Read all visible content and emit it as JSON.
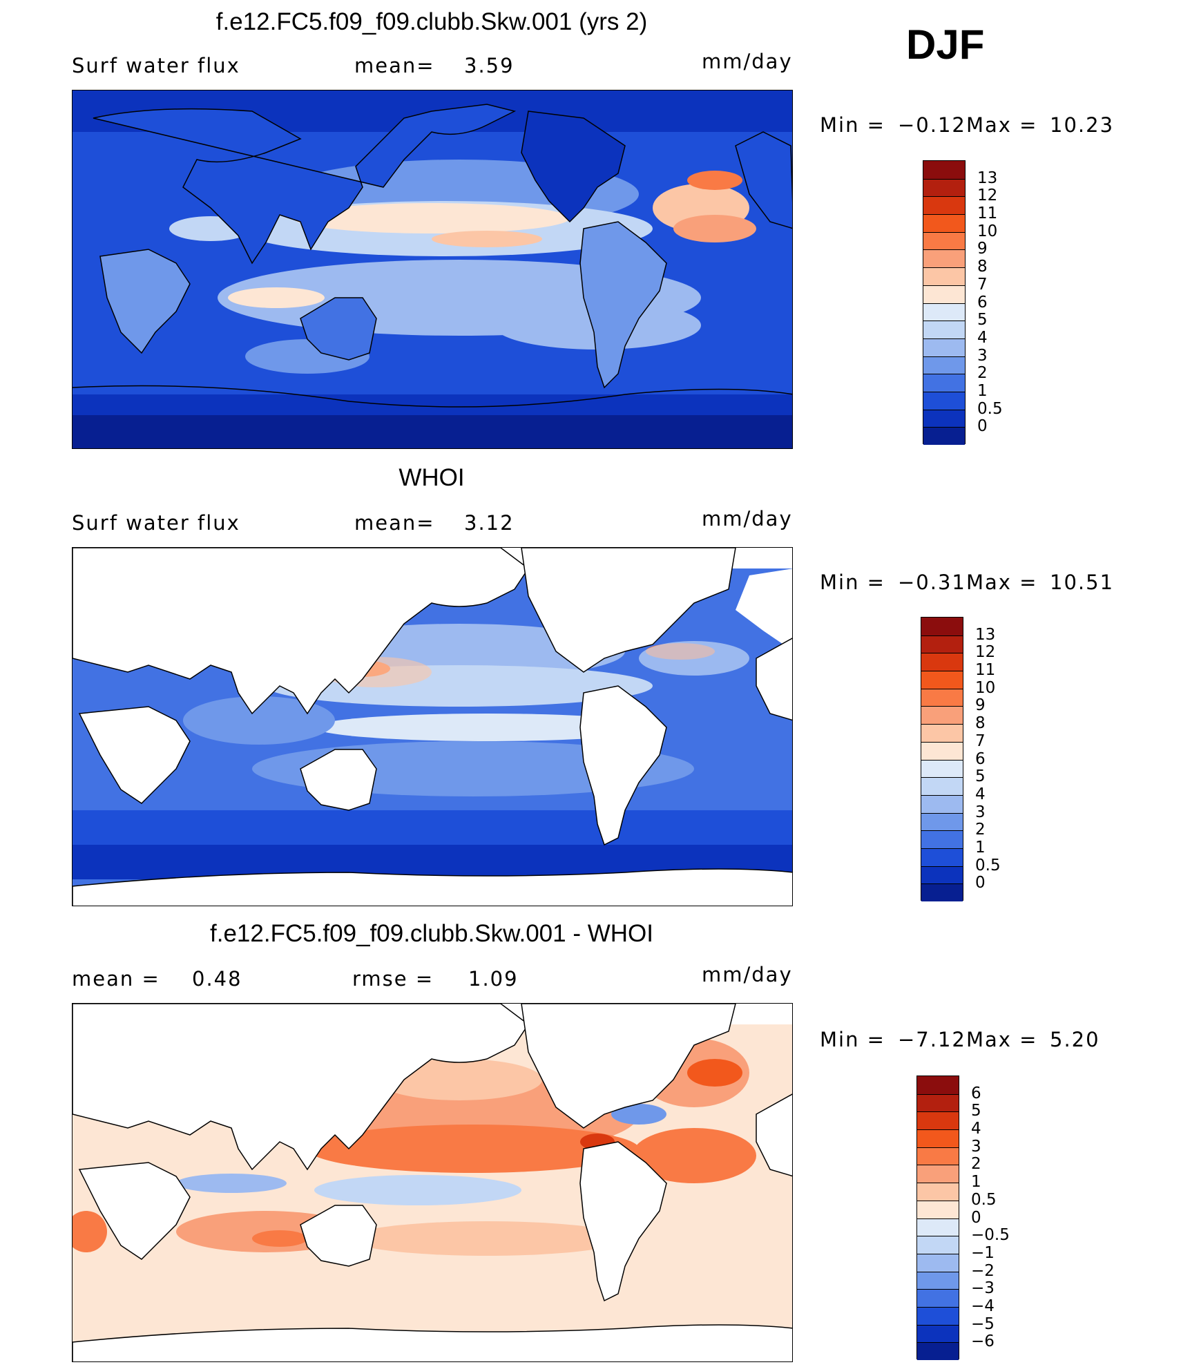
{
  "season": "DJF",
  "panels": [
    {
      "title": "f.e12.FC5.f09_f09.clubb.Skw.001 (yrs 2)",
      "left_label": "Surf water flux",
      "stat1_label": "mean=",
      "stat1_value": "3.59",
      "units": "mm/day",
      "min_label": "Min =",
      "min_value": "−0.12",
      "max_label": "Max =",
      "max_value": "10.23",
      "colorbar": {
        "labels": [
          "13",
          "12",
          "11",
          "10",
          "9",
          "8",
          "7",
          "6",
          "5",
          "4",
          "3",
          "2",
          "1",
          "0.5",
          "0"
        ],
        "colors": [
          "#8b0d0d",
          "#b3200f",
          "#d9380f",
          "#f2581c",
          "#f97a45",
          "#f9a07a",
          "#fcc6a6",
          "#fde6d4",
          "#dde9f8",
          "#c2d7f5",
          "#9dbaf0",
          "#6f98ea",
          "#4272e3",
          "#1e4fd8",
          "#0c33bd",
          "#071f91"
        ]
      }
    },
    {
      "title": "WHOI",
      "left_label": "Surf water flux",
      "stat1_label": "mean=",
      "stat1_value": "3.12",
      "units": "mm/day",
      "min_label": "Min =",
      "min_value": "−0.31",
      "max_label": "Max =",
      "max_value": "10.51",
      "colorbar": {
        "labels": [
          "13",
          "12",
          "11",
          "10",
          "9",
          "8",
          "7",
          "6",
          "5",
          "4",
          "3",
          "2",
          "1",
          "0.5",
          "0"
        ],
        "colors": [
          "#8b0d0d",
          "#b3200f",
          "#d9380f",
          "#f2581c",
          "#f97a45",
          "#f9a07a",
          "#fcc6a6",
          "#fde6d4",
          "#dde9f8",
          "#c2d7f5",
          "#9dbaf0",
          "#6f98ea",
          "#4272e3",
          "#1e4fd8",
          "#0c33bd",
          "#071f91"
        ]
      }
    },
    {
      "title": "f.e12.FC5.f09_f09.clubb.Skw.001 - WHOI",
      "left_label": "mean =",
      "left_value": "0.48",
      "stat1_label": "rmse =",
      "stat1_value": "1.09",
      "units": "mm/day",
      "min_label": "Min =",
      "min_value": "−7.12",
      "max_label": "Max =",
      "max_value": "5.20",
      "colorbar": {
        "labels": [
          "6",
          "5",
          "4",
          "3",
          "2",
          "1",
          "0.5",
          "0",
          "−0.5",
          "−1",
          "−2",
          "−3",
          "−4",
          "−5",
          "−6"
        ],
        "colors": [
          "#8b0d0d",
          "#b3200f",
          "#d9380f",
          "#f2581c",
          "#f97a45",
          "#f9a07a",
          "#fcc6a6",
          "#fde6d4",
          "#dde9f8",
          "#c2d7f5",
          "#9dbaf0",
          "#6f98ea",
          "#4272e3",
          "#1e4fd8",
          "#0c33bd",
          "#071f91"
        ]
      }
    }
  ]
}
